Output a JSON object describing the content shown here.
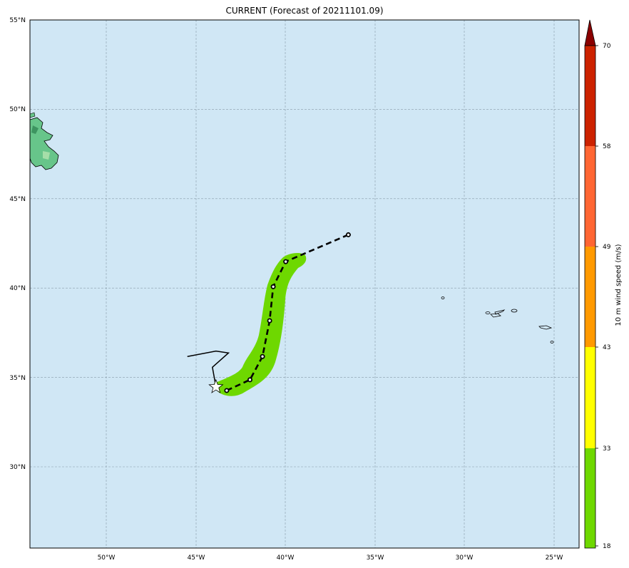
{
  "title": "CURRENT (Forecast of 20211101.09)",
  "map": {
    "ocean_color": "#d0e7f5",
    "land_color": "#67c58a",
    "swath_color": "#6ed800",
    "lat_labels": [
      "55°N",
      "50°N",
      "45°N",
      "40°N",
      "35°N",
      "30°N"
    ],
    "lon_labels": [
      "50°W",
      "45°W",
      "40°W",
      "35°W",
      "30°W",
      "25°W"
    ],
    "forecast_track": [
      {
        "lon": -43.3,
        "lat": 34.3
      },
      {
        "lon": -42.0,
        "lat": 34.9
      },
      {
        "lon": -41.3,
        "lat": 36.2
      },
      {
        "lon": -40.9,
        "lat": 38.2
      },
      {
        "lon": -40.7,
        "lat": 40.1
      },
      {
        "lon": -40.0,
        "lat": 41.5
      },
      {
        "lon": -36.5,
        "lat": 43.0
      }
    ],
    "past_track": [
      {
        "lon": -45.5,
        "lat": 36.2
      },
      {
        "lon": -43.9,
        "lat": 36.5
      },
      {
        "lon": -43.2,
        "lat": 36.4
      },
      {
        "lon": -44.1,
        "lat": 35.6
      },
      {
        "lon": -43.9,
        "lat": 34.5
      }
    ],
    "storm_position": {
      "lon": -43.9,
      "lat": 34.5
    }
  },
  "colorbar": {
    "label": "10 m wind speed (m/s)",
    "ticks": [
      "18",
      "33",
      "43",
      "49",
      "58",
      "70"
    ],
    "colors": [
      "#6ed800",
      "#ffff00",
      "#ff9900",
      "#ff6633",
      "#cc2200",
      "#8b0000"
    ]
  }
}
